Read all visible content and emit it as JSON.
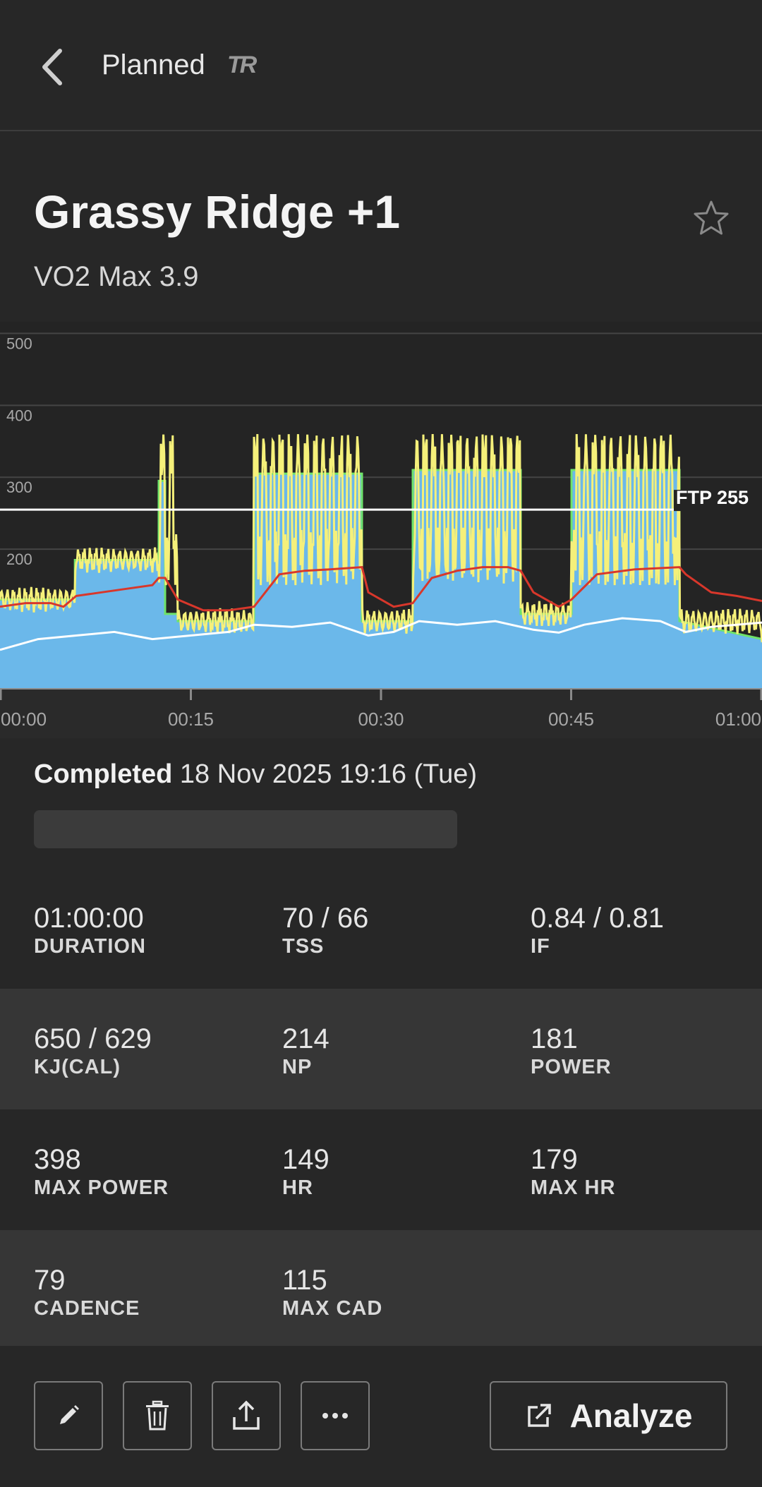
{
  "header": {
    "title": "Planned",
    "brand": "TR"
  },
  "workout": {
    "name": "Grassy Ridge +1",
    "category": "VO2 Max 3.9"
  },
  "chart_data": {
    "type": "area",
    "y_ticks": [
      "500",
      "400",
      "300",
      "200"
    ],
    "ylim": [
      0,
      500
    ],
    "x_ticks": [
      "00:00",
      "00:15",
      "00:30",
      "00:45",
      "01:00"
    ],
    "xlim": [
      0,
      60
    ],
    "ftp_label": "FTP 255",
    "ftp": 255,
    "grid": true,
    "colors": {
      "target": "#6bb8ea",
      "power": "#f5f07a",
      "hr": "#d8372b",
      "cadence": "#ffffff",
      "target_edge": "#6fe36a"
    },
    "series": [
      {
        "x": [
          0,
          5.9,
          5.9,
          12.5,
          12.5,
          13,
          13,
          14,
          14,
          20,
          20,
          28.5,
          28.5,
          32.5,
          32.5,
          41,
          41,
          45,
          45,
          53.5,
          53.5,
          60
        ],
        "values": [
          130,
          130,
          185,
          185,
          295,
          295,
          110,
          110,
          100,
          100,
          305,
          305,
          100,
          100,
          310,
          310,
          110,
          110,
          310,
          310,
          100,
          75
        ]
      },
      {
        "x": [
          0,
          2,
          4,
          5,
          6,
          8,
          10,
          12,
          12.5,
          13,
          14,
          16,
          18,
          20,
          22,
          24,
          26,
          28.5,
          29,
          31,
          32.5,
          34,
          36,
          38,
          40,
          41,
          42,
          44,
          45,
          47,
          50,
          53.5,
          54,
          56,
          58,
          60
        ],
        "values": [
          120,
          125,
          125,
          120,
          135,
          140,
          145,
          150,
          160,
          160,
          130,
          115,
          115,
          120,
          165,
          170,
          172,
          175,
          140,
          120,
          125,
          160,
          170,
          175,
          175,
          170,
          140,
          120,
          130,
          165,
          172,
          175,
          165,
          140,
          135,
          128
        ]
      },
      {
        "x": [
          0,
          3,
          6,
          9,
          12,
          15,
          18,
          20,
          23,
          26,
          29,
          31,
          33,
          36,
          39,
          42,
          44,
          46,
          49,
          52,
          54,
          56,
          58,
          60
        ],
        "values": [
          60,
          75,
          80,
          85,
          75,
          80,
          85,
          95,
          92,
          98,
          80,
          85,
          100,
          95,
          100,
          88,
          84,
          95,
          104,
          100,
          85,
          92,
          95,
          98
        ]
      }
    ]
  },
  "completed": {
    "label": "Completed",
    "date": "18 Nov 2025 19:16 (Tue)"
  },
  "stats": [
    [
      {
        "value": "01:00:00",
        "label": "DURATION"
      },
      {
        "value": "70 / 66",
        "label": "TSS"
      },
      {
        "value": "0.84 / 0.81",
        "label": "IF"
      }
    ],
    [
      {
        "value": "650 / 629",
        "label": "KJ(CAL)"
      },
      {
        "value": "214",
        "label": "NP"
      },
      {
        "value": "181",
        "label": "POWER"
      }
    ],
    [
      {
        "value": "398",
        "label": "MAX POWER"
      },
      {
        "value": "149",
        "label": "HR"
      },
      {
        "value": "179",
        "label": "MAX HR"
      }
    ],
    [
      {
        "value": "79",
        "label": "CADENCE"
      },
      {
        "value": "115",
        "label": "MAX CAD"
      }
    ]
  ],
  "actions": {
    "analyze_label": "Analyze",
    "icons": [
      "pencil-icon",
      "trash-icon",
      "share-icon",
      "more-icon",
      "external-link-icon"
    ]
  }
}
